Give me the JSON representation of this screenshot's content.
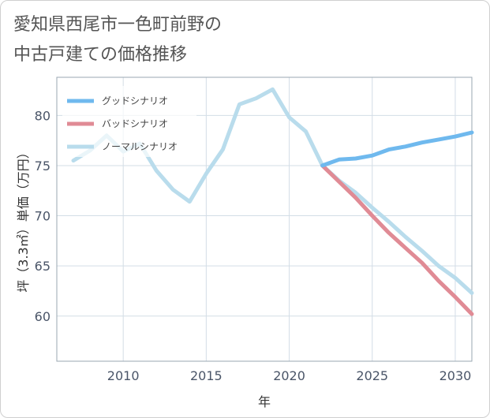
{
  "title_line1": "愛知県西尾市一色町前野の",
  "title_line2": "中古戸建ての価格推移",
  "chart_data": {
    "type": "line",
    "title": "愛知県西尾市一色町前野の中古戸建ての価格推移",
    "xlabel": "年",
    "ylabel": "坪（3.3㎡）単価（万円）",
    "xlim": [
      2006,
      2031
    ],
    "ylim": [
      55.5,
      83.8
    ],
    "xticks": [
      2010,
      2015,
      2020,
      2025,
      2030
    ],
    "yticks": [
      60,
      65,
      70,
      75,
      80
    ],
    "grid": true,
    "legend_position": "top-left",
    "series": [
      {
        "name": "グッドシナリオ",
        "color": "#6fb9ee",
        "x": [
          2022,
          2023,
          2024,
          2025,
          2026,
          2027,
          2028,
          2029,
          2030,
          2031
        ],
        "values": [
          75.0,
          75.6,
          75.7,
          76.0,
          76.6,
          76.9,
          77.3,
          77.6,
          77.9,
          78.3
        ]
      },
      {
        "name": "バッドシナリオ",
        "color": "#e08b95",
        "x": [
          2022,
          2023,
          2024,
          2025,
          2026,
          2027,
          2028,
          2029,
          2030,
          2031
        ],
        "values": [
          75.0,
          73.4,
          71.8,
          70.0,
          68.3,
          66.8,
          65.3,
          63.5,
          61.9,
          60.2
        ]
      },
      {
        "name": "ノーマルシナリオ",
        "color": "#b9dcec",
        "x": [
          2007,
          2008,
          2009,
          2010,
          2011,
          2012,
          2013,
          2014,
          2015,
          2016,
          2017,
          2018,
          2019,
          2020,
          2021,
          2022,
          2023,
          2024,
          2025,
          2026,
          2027,
          2028,
          2029,
          2030,
          2031
        ],
        "values": [
          75.5,
          76.5,
          78.0,
          76.4,
          77.2,
          74.5,
          72.6,
          71.4,
          74.2,
          76.6,
          81.1,
          81.7,
          82.6,
          79.8,
          78.4,
          75.0,
          73.5,
          72.3,
          70.8,
          69.4,
          67.9,
          66.5,
          65.0,
          63.8,
          62.3
        ]
      }
    ]
  }
}
